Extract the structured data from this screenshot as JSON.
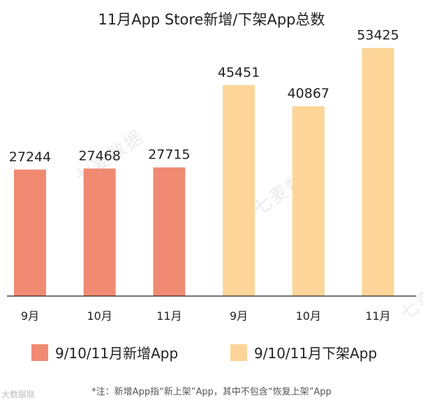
{
  "chart_data": {
    "type": "bar",
    "title": "11月App Store新增/下架App总数",
    "categories": [
      "9月",
      "10月",
      "11月",
      "9月",
      "10月",
      "11月"
    ],
    "values": [
      27244,
      27468,
      27715,
      45451,
      40867,
      53425
    ],
    "series": [
      {
        "name": "9/10/11月新增App",
        "color": "#f08a72",
        "points": [
          0,
          1,
          2
        ]
      },
      {
        "name": "9/10/11月下架App",
        "color": "#fdd598",
        "points": [
          3,
          4,
          5
        ]
      }
    ],
    "ylim": [
      0,
      60000
    ],
    "grid": false,
    "legend_position": "bottom",
    "xlabel": "",
    "ylabel": ""
  },
  "footnote": "*注：新增App指“新上架”App，其中不包含“恢复上架”App",
  "watermark": "七麦数据",
  "source_logo": "大数据联",
  "colors": {
    "axis": "#222222",
    "text": "#222222"
  }
}
